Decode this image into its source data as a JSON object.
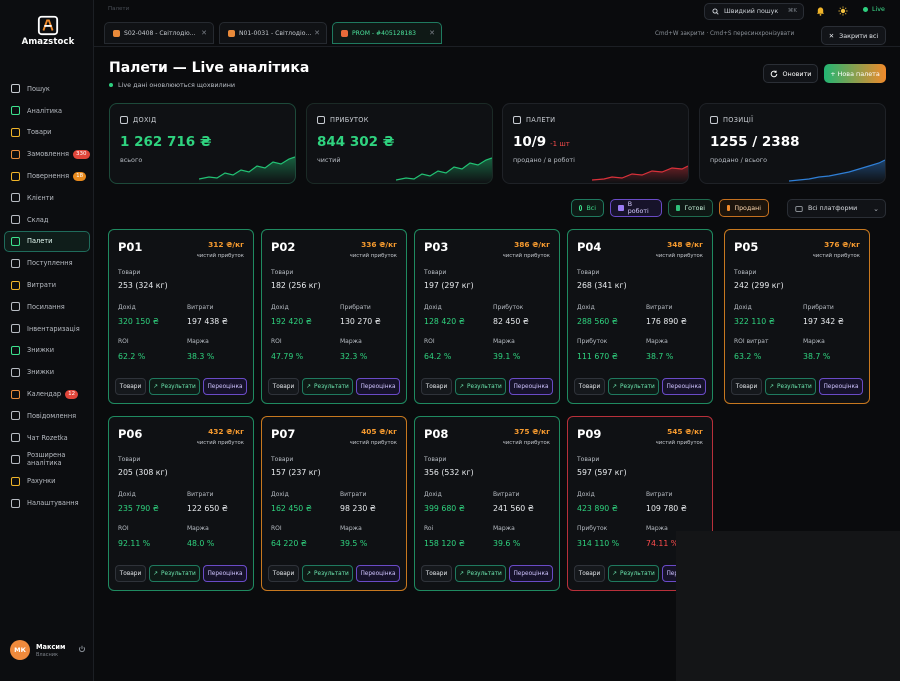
{
  "app": {
    "logo_text": "Amazstock"
  },
  "sidebar": {
    "items": [
      {
        "label": "Пошук",
        "icon": "search-icon"
      },
      {
        "label": "Аналітика",
        "icon": "chart-icon"
      },
      {
        "label": "Товари",
        "icon": "box-icon"
      },
      {
        "label": "Замовлення",
        "icon": "cart-icon",
        "badge": "330",
        "badge_color": "#e0453a"
      },
      {
        "label": "Повернення",
        "icon": "return-icon",
        "badge": "18",
        "badge_color": "#e98a1d"
      },
      {
        "label": "Клієнти",
        "icon": "users-icon"
      },
      {
        "label": "Склад",
        "icon": "warehouse-icon"
      },
      {
        "label": "Палети",
        "icon": "pallet-icon",
        "active": true
      },
      {
        "label": "Поступлення",
        "icon": "inbox-icon"
      },
      {
        "label": "Витрати",
        "icon": "expense-icon"
      },
      {
        "label": "Посилання",
        "icon": "link-icon"
      },
      {
        "label": "Інвентаризація",
        "icon": "inventory-icon"
      },
      {
        "label": "Знижки",
        "icon": "discount-icon"
      },
      {
        "label": "Знижки",
        "icon": "tag-icon"
      },
      {
        "label": "Календар",
        "icon": "calendar-icon",
        "badge": "12",
        "badge_color": "#e0453a"
      },
      {
        "label": "Повідомлення",
        "icon": "message-icon"
      },
      {
        "label": "Чат Rozetka",
        "icon": "chat-icon"
      },
      {
        "label": "Розширена аналітика",
        "icon": "analytics-icon"
      },
      {
        "label": "Рахунки",
        "icon": "invoice-icon"
      },
      {
        "label": "Налаштування",
        "icon": "gear-icon"
      }
    ],
    "user": {
      "initials": "МК",
      "name": "Максим",
      "role": "Власник"
    }
  },
  "topbar": {
    "breadcrumb": "Палети",
    "search_label": "Швидкий пошук",
    "search_kbd": "⌘K",
    "live_label": "Live"
  },
  "tabs": [
    {
      "label": "S02-0408 - Світлодіо...",
      "icon_color": "#e98a3a"
    },
    {
      "label": "N01-0031 - Світлодіо...",
      "icon_color": "#e98a3a"
    },
    {
      "label": "PROM - #405128183",
      "icon_color": "#e86a3a",
      "active": true
    }
  ],
  "tab_hint": "Cmd+W закрити · Cmd+S пересинхронізувати",
  "close_all_label": "Закрити всі",
  "page": {
    "title": "Палети — Live аналітика",
    "subtitle": "Live дані оновлюються щохвилини",
    "refresh_label": "Оновити",
    "new_label": "+ Нова палета"
  },
  "stats": [
    {
      "label": "ДОХІД",
      "value": "1 262 716 ₴",
      "sub": "всього",
      "value_color": "#2fd37f",
      "spark_color": "#22c274",
      "icon": "wallet-icon"
    },
    {
      "label": "ПРИБУТОК",
      "value": "844 302 ₴",
      "sub": "чистий",
      "value_color": "#2fd37f",
      "spark_color": "#22c274",
      "icon": "trend-icon"
    },
    {
      "label": "ПАЛЕТИ",
      "value": "10/9",
      "delta": "-1 шт",
      "sub": "продано / в роботі",
      "value_color": "#ffffff",
      "spark_color": "#d9313a",
      "icon": "clock-icon"
    },
    {
      "label": "ПОЗИЦІЇ",
      "value": "1255 / 2388",
      "sub": "продано / всього",
      "value_color": "#ffffff",
      "spark_color": "#2f7fd6",
      "icon": "layers-icon"
    }
  ],
  "filters": {
    "all": "Всі",
    "in_work": "В роботі",
    "ready": "Готові",
    "sold": "Продані",
    "platform": "Всі платформи"
  },
  "card_labels": {
    "goods": "Товари",
    "income": "Дохід",
    "net_profit": "чистий прибуток",
    "roi": "ROI",
    "margin": "Маржа",
    "btn_goods": "Товари",
    "btn_results": "Результати",
    "btn_reeval": "Переоцінка"
  },
  "pallets": [
    {
      "id": "P01",
      "price": "312 ₴/кг",
      "goods": "253 (324 кг)",
      "income": "320 150 ₴",
      "k2": "Витрати",
      "v2": "197 438 ₴",
      "k3": "ROI",
      "v3": "62.2 %",
      "k4": "Маржа",
      "v4": "38.3 %",
      "border": "green"
    },
    {
      "id": "P02",
      "price": "336 ₴/кг",
      "goods": "182 (256 кг)",
      "income": "192 420 ₴",
      "k2": "Прибрати",
      "v2": "130 270 ₴",
      "k3": "ROI",
      "v3": "47.79 %",
      "k4": "Маржа",
      "v4": "32.3 %",
      "border": "green"
    },
    {
      "id": "P03",
      "price": "386 ₴/кг",
      "goods": "197 (297 кг)",
      "income": "128 420 ₴",
      "k2": "Прибуток",
      "v2": "82 450 ₴",
      "k3": "ROI",
      "v3": "64.2 %",
      "k4": "Маржа",
      "v4": "39.1 %",
      "border": "green"
    },
    {
      "id": "P04",
      "price": "348 ₴/кг",
      "goods": "268 (341 кг)",
      "income": "288 560 ₴",
      "k2": "Витрати",
      "v2": "176 890 ₴",
      "k3": "Прибуток",
      "v3": "111 670 ₴",
      "k4": "Маржа",
      "v4": "38.7 %",
      "border": "green"
    },
    {
      "id": "P05",
      "price": "376 ₴/кг",
      "goods": "242 (299 кг)",
      "income": "322 110 ₴",
      "k2": "Прибрати",
      "v2": "197 342 ₴",
      "k3": "ROI витрат",
      "v3": "63.2 %",
      "k4": "Маржа",
      "v4": "38.7 %",
      "border": "orange"
    },
    {
      "id": "P06",
      "price": "432 ₴/кг",
      "goods": "205 (308 кг)",
      "income": "235 790 ₴",
      "k2": "Витрати",
      "v2": "122 650 ₴",
      "k3": "ROI",
      "v3": "92.11 %",
      "k4": "Маржа",
      "v4": "48.0 %",
      "border": "green"
    },
    {
      "id": "P07",
      "price": "405 ₴/кг",
      "goods": "157 (237 кг)",
      "income": "162 450 ₴",
      "k2": "Витрати",
      "v2": "98 230 ₴",
      "k3": "ROI",
      "v3": "64 220 ₴",
      "k4": "Маржа",
      "v4": "39.5 %",
      "border": "orange"
    },
    {
      "id": "P08",
      "price": "375 ₴/кг",
      "goods": "356 (532 кг)",
      "income": "399 680 ₴",
      "k2": "Витрати",
      "v2": "241 560 ₴",
      "k3": "Roi",
      "v3": "158 120 ₴",
      "k4": "Маржа",
      "v4": "39.6 %",
      "border": "green"
    },
    {
      "id": "P09",
      "price": "545 ₴/кг",
      "goods": "597 (597 кг)",
      "income": "423 890 ₴",
      "k2": "Витрати",
      "v2": "109 780 ₴",
      "k3": "Прибуток",
      "v3": "314 110 %",
      "k4": "Маржа",
      "v4": "74.11 %",
      "border": "red",
      "v4_color": "red"
    }
  ]
}
